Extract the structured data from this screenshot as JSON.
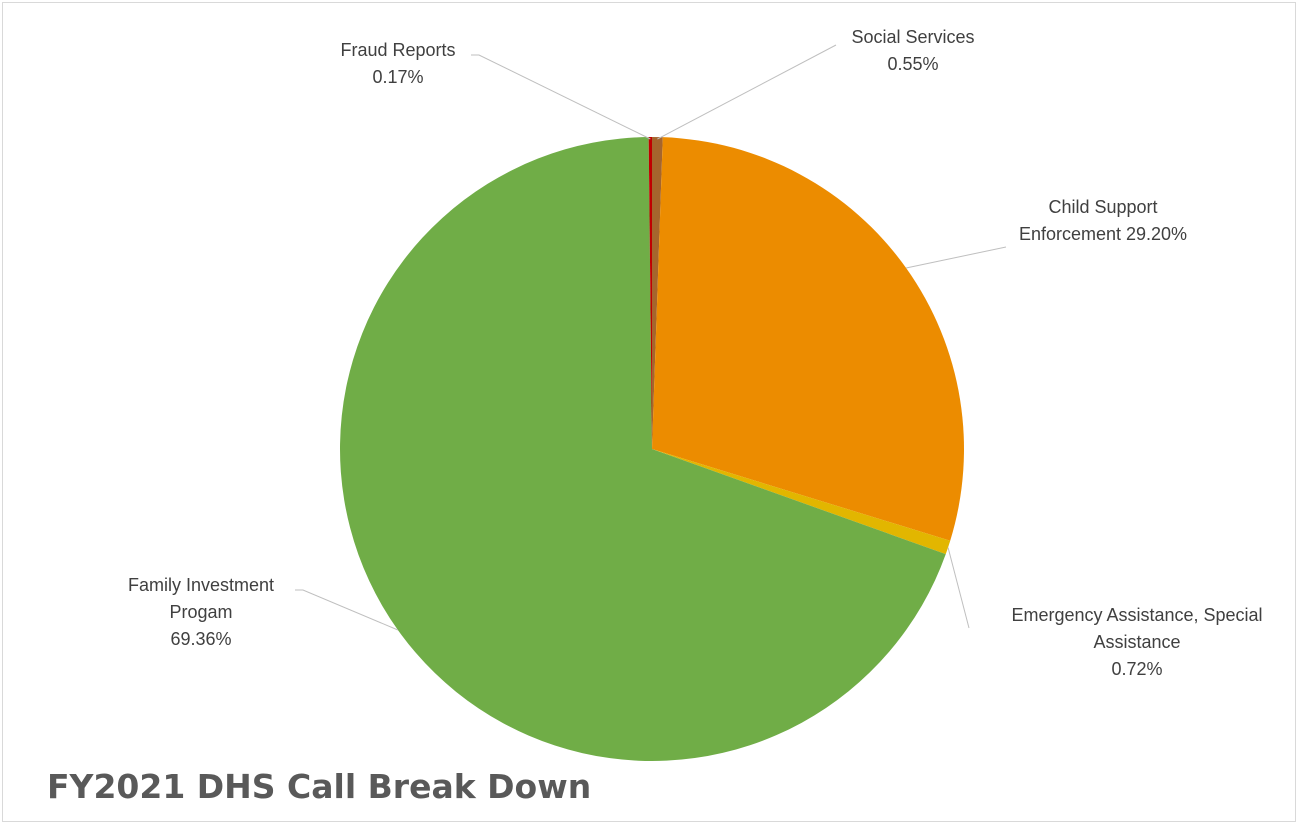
{
  "chart_data": {
    "type": "pie",
    "title": "FY2021 DHS Call Break Down",
    "slices": [
      {
        "key": "social",
        "label": "Social Services",
        "value_label": "0.55%",
        "value": 0.55,
        "color": "#a5652d"
      },
      {
        "key": "child",
        "label": "Child Support Enforcement",
        "value_label": "29.20%",
        "value": 29.2,
        "color": "#ec8c00"
      },
      {
        "key": "emergency",
        "label": "Emergency Assistance, Special Assistance",
        "value_label": "0.72%",
        "value": 0.72,
        "color": "#e2b600"
      },
      {
        "key": "family",
        "label": "Family Investment Progam",
        "value_label": "69.36%",
        "value": 69.36,
        "color": "#70ad47"
      },
      {
        "key": "fraud",
        "label": "Fraud Reports",
        "value_label": "0.17%",
        "value": 0.17,
        "color": "#c00000"
      }
    ],
    "labels": {
      "social": {
        "lines": [
          "Social Services",
          "0.55%"
        ]
      },
      "child": {
        "lines": [
          "Child Support",
          "Enforcement 29.20%"
        ]
      },
      "emergency": {
        "lines": [
          "Emergency Assistance, Special",
          "Assistance",
          "0.72%"
        ]
      },
      "family": {
        "lines": [
          "Family Investment",
          "Progam",
          "69.36%"
        ]
      },
      "fraud": {
        "lines": [
          "Fraud Reports",
          "0.17%"
        ]
      }
    }
  }
}
